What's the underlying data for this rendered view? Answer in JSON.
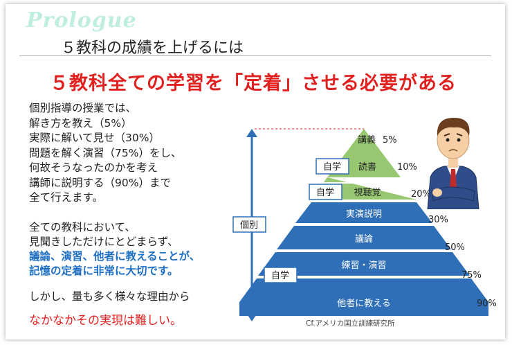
{
  "slide": {
    "title_logo": "Prologue",
    "subtitle": "５教科の成績を上げるには",
    "headline": "５教科全ての学習を「定着」させる必要がある"
  },
  "left_text": {
    "lines": [
      "個別指導の授業では、",
      "解き方を教え（5%）",
      "実際に解いて見せ（30%）",
      "問題を解く演習（75%）をし、",
      "何故そうなったのかを考え",
      "講師に説明する（90%）まで",
      "全て行えます。"
    ],
    "paragraph2": {
      "line1": "全ての教科において、",
      "line2": "見聞きしただけにとどまらず、",
      "highlight1": "議論、演習、他者に教えることが、",
      "highlight2": "記憶の定着に非常に大切です。"
    },
    "paragraph3": "しかし、量も多く様々な理由から",
    "paragraph4": "なかなかその実現は難しい。"
  },
  "pyramid": {
    "colors": {
      "green": "#97c770",
      "blue": "#2f6fb8",
      "tag_border": "#2f6fb8"
    },
    "levels": [
      {
        "label": "講義",
        "percent": "5%"
      },
      {
        "label": "読書",
        "percent": "10%"
      },
      {
        "label": "視聴覚",
        "percent": "20%"
      },
      {
        "label": "実演説明",
        "percent": "30%"
      },
      {
        "label": "議論",
        "percent": "50%"
      },
      {
        "label": "練習・演習",
        "percent": "75%"
      },
      {
        "label": "他者に教える",
        "percent": "90%"
      }
    ],
    "tags": {
      "self_study_1": "自学",
      "self_study_2": "自学",
      "self_study_3": "自学",
      "individual": "個別"
    },
    "source": "Cf.アメリカ国立訓練研究所"
  }
}
